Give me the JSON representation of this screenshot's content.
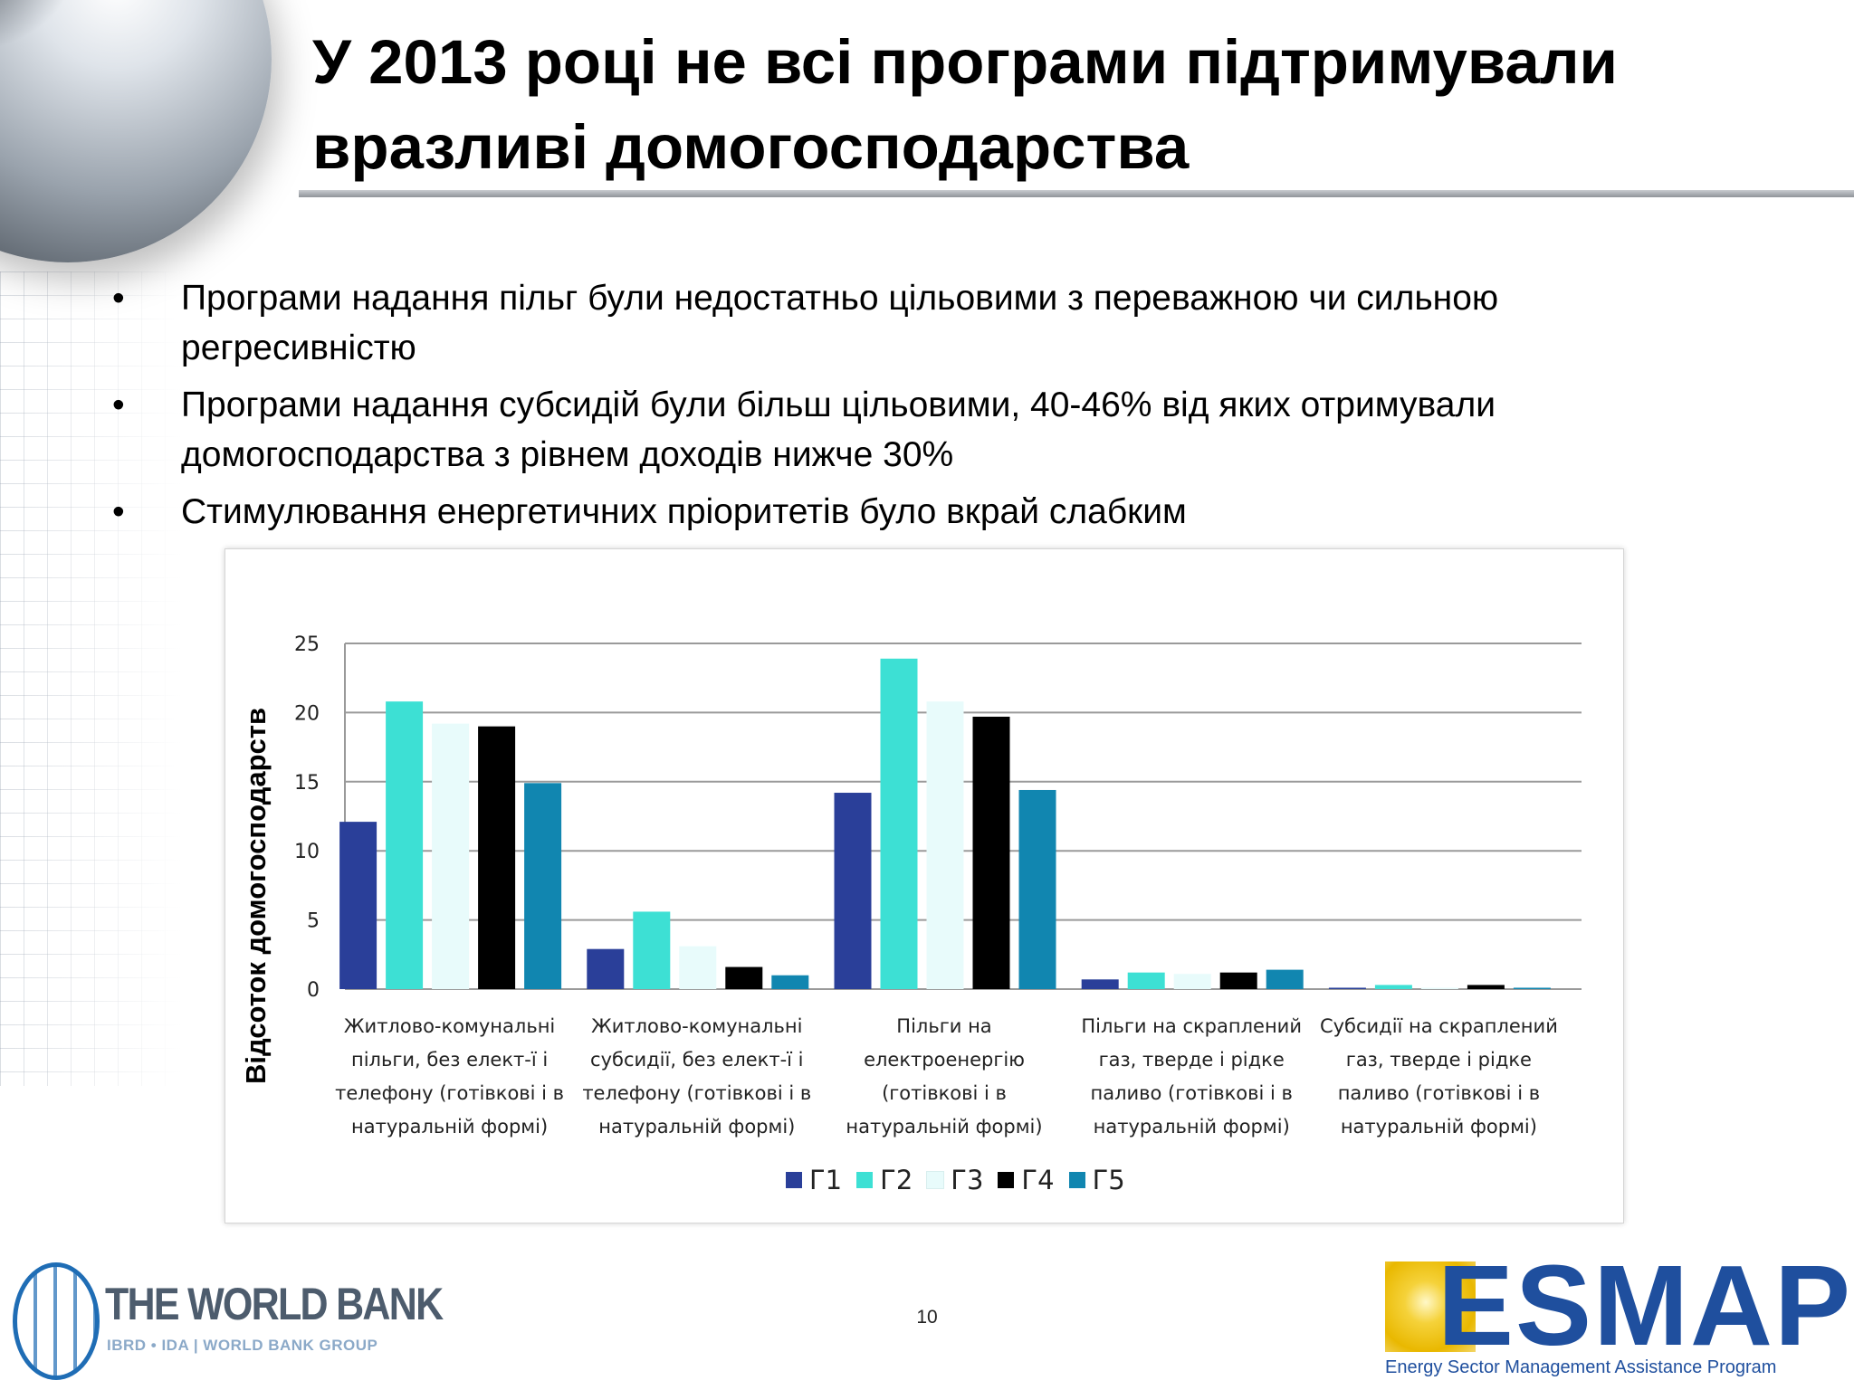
{
  "slide": {
    "title_line1": "У 2013 році не всі програми підтримували",
    "title_line2": "вразливі домогосподарства",
    "bullet_symbol": "•",
    "bullets": [
      {
        "line1": "Програми надання пільг були недостатньо цільовими з переважною чи сильною",
        "line2": "регресивністю"
      },
      {
        "line1": "Програми надання субсидій були більш цільовими, 40-46% від яких отримували",
        "line2": "домогосподарства з рівнем доходів нижче 30%"
      },
      {
        "line1": "Стимулювання енергетичних пріоритетів було вкрай слабким",
        "line2": ""
      }
    ],
    "page_number": "10"
  },
  "logos": {
    "world_bank": {
      "title": "THE WORLD BANK",
      "subtitle": "IBRD • IDA | WORLD BANK GROUP"
    },
    "esmap": {
      "title": "ESMAP",
      "subtitle": "Energy Sector Management Assistance Program"
    }
  },
  "chart_data": {
    "type": "bar",
    "ylabel": "Відсоток домогосподарств",
    "ylim": [
      0,
      25
    ],
    "yticks": [
      "0",
      "5",
      "10",
      "15",
      "20",
      "25"
    ],
    "grid": true,
    "legend_position": "bottom",
    "categories": [
      [
        "Житлово-комунальні",
        "пільги, без елект-ї і",
        "телефону (готівкові і в",
        "натуральній формі)"
      ],
      [
        "Житлово-комунальні",
        "субсидії, без елект-ї і",
        "телефону (готівкові і в",
        "натуральній формі)"
      ],
      [
        "Пільги на",
        "електроенергію",
        "(готівкові і в",
        "натуральній формі)"
      ],
      [
        "Пільги на скраплений",
        "газ, тверде і рідке",
        "паливо (готівкові і в",
        "натуральній формі)"
      ],
      [
        "Субсидії на скраплений",
        "газ, тверде і рідке",
        "паливо (готівкові і в",
        "натуральній формі)"
      ]
    ],
    "series": [
      {
        "name": "Г1",
        "color": "#2a3f99",
        "values": [
          12.1,
          2.9,
          14.2,
          0.7,
          0.1
        ]
      },
      {
        "name": "Г2",
        "color": "#3de0d4",
        "values": [
          20.8,
          5.6,
          23.9,
          1.2,
          0.3
        ]
      },
      {
        "name": "Г3",
        "color": "#e8fbfb",
        "values": [
          19.2,
          3.1,
          20.8,
          1.1,
          0.1
        ]
      },
      {
        "name": "Г4",
        "color": "#000000",
        "values": [
          19.0,
          1.6,
          19.7,
          1.2,
          0.3
        ]
      },
      {
        "name": "Г5",
        "color": "#1186b0",
        "values": [
          14.9,
          1.0,
          14.4,
          1.4,
          0.1
        ]
      }
    ]
  }
}
